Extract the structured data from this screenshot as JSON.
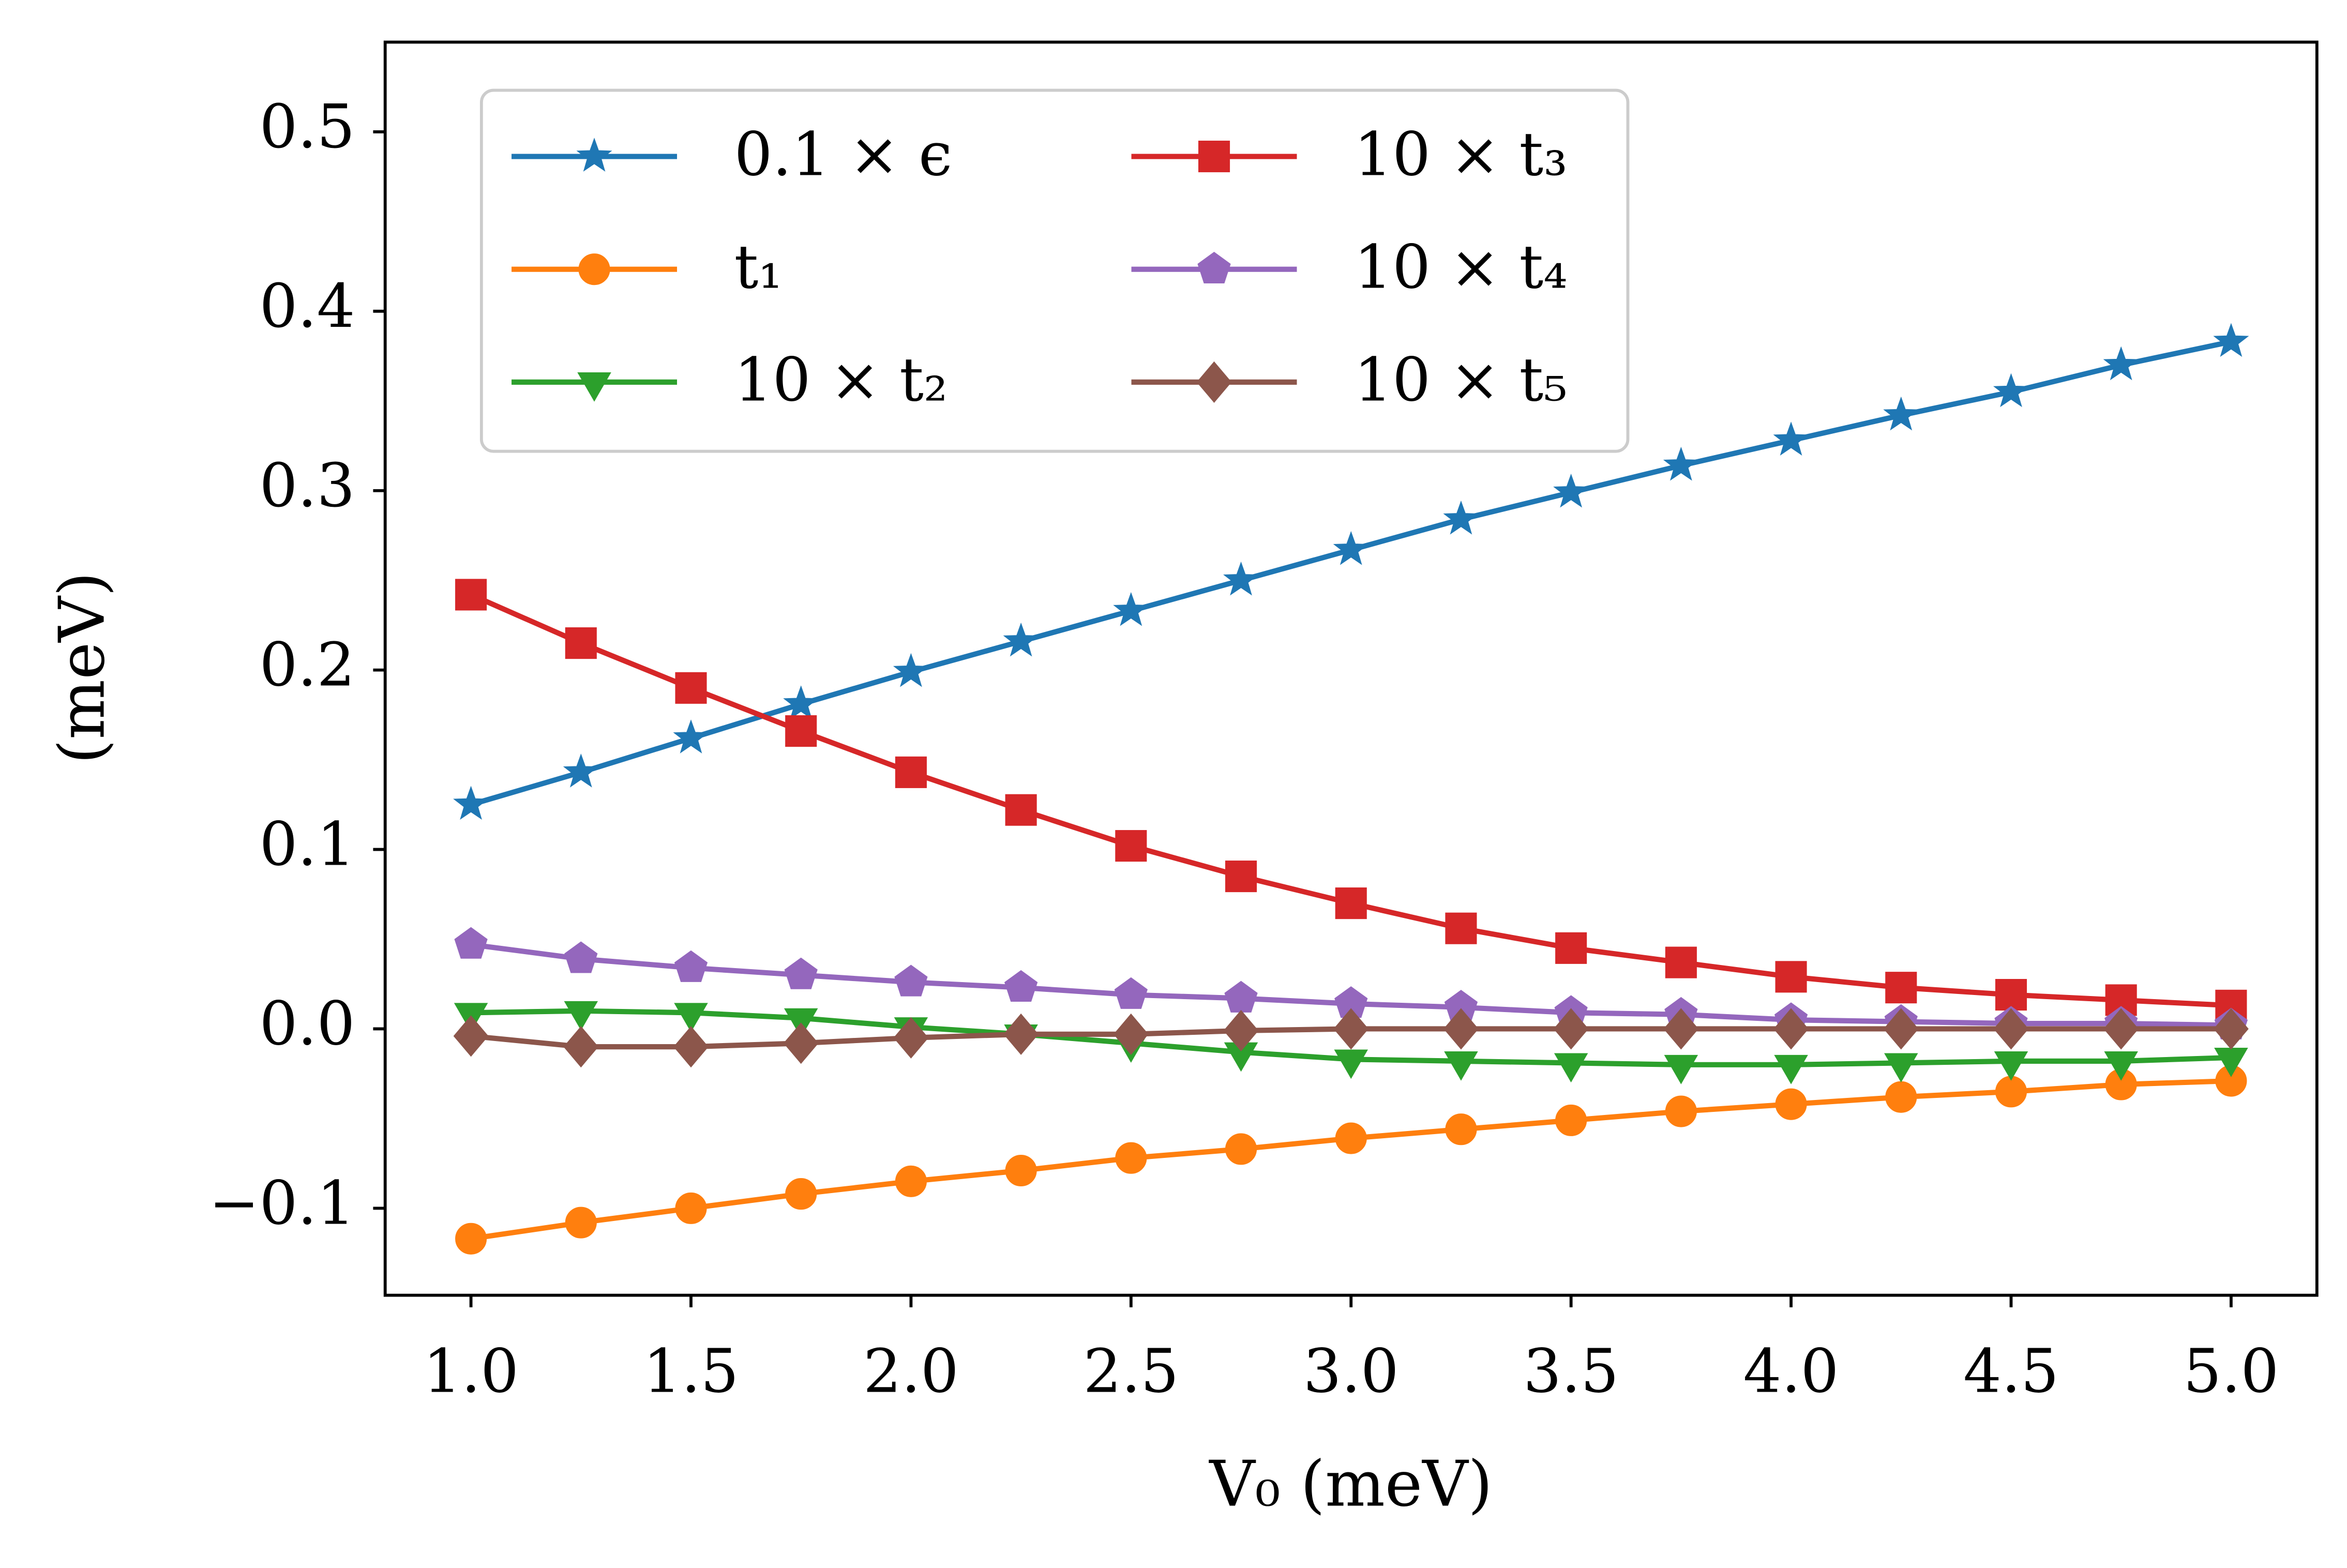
{
  "chart_data": {
    "type": "line",
    "x_label": "V₀ (meV)",
    "y_label": "(meV)",
    "x": [
      1.0,
      1.25,
      1.5,
      1.75,
      2.0,
      2.25,
      2.5,
      2.75,
      3.0,
      3.25,
      3.5,
      3.75,
      4.0,
      4.25,
      4.5,
      4.75,
      5.0
    ],
    "series": [
      {
        "name": "0.1 × ϵ",
        "color": "#1f77b4",
        "marker": "star",
        "values": [
          0.125,
          0.143,
          0.162,
          0.181,
          0.199,
          0.216,
          0.233,
          0.25,
          0.267,
          0.284,
          0.299,
          0.314,
          0.328,
          0.342,
          0.355,
          0.37,
          0.383
        ]
      },
      {
        "name": "t₁",
        "color": "#ff7f0e",
        "marker": "circle",
        "values": [
          -0.117,
          -0.108,
          -0.1,
          -0.092,
          -0.085,
          -0.079,
          -0.072,
          -0.067,
          -0.061,
          -0.056,
          -0.051,
          -0.046,
          -0.042,
          -0.038,
          -0.035,
          -0.031,
          -0.029
        ]
      },
      {
        "name": "10 × t₂",
        "color": "#2ca02c",
        "marker": "triangle-down",
        "values": [
          0.009,
          0.01,
          0.009,
          0.006,
          0.001,
          -0.003,
          -0.008,
          -0.013,
          -0.017,
          -0.018,
          -0.019,
          -0.02,
          -0.02,
          -0.019,
          -0.018,
          -0.018,
          -0.016
        ]
      },
      {
        "name": "10 × t₃",
        "color": "#d62728",
        "marker": "square",
        "values": [
          0.242,
          0.215,
          0.19,
          0.166,
          0.143,
          0.122,
          0.102,
          0.085,
          0.07,
          0.056,
          0.045,
          0.037,
          0.029,
          0.023,
          0.019,
          0.016,
          0.013
        ]
      },
      {
        "name": "10 × t₄",
        "color": "#9467bd",
        "marker": "pentagon",
        "values": [
          0.047,
          0.039,
          0.034,
          0.03,
          0.026,
          0.023,
          0.019,
          0.017,
          0.014,
          0.012,
          0.009,
          0.008,
          0.005,
          0.004,
          0.003,
          0.003,
          0.002
        ]
      },
      {
        "name": "10 × t₅",
        "color": "#8c564b",
        "marker": "diamond",
        "values": [
          -0.004,
          -0.01,
          -0.01,
          -0.008,
          -0.005,
          -0.003,
          -0.003,
          -0.001,
          0,
          0,
          0,
          0,
          0,
          0,
          0,
          0,
          0
        ]
      }
    ],
    "xlim": [
      0.805,
      5.195
    ],
    "xticks": [
      {
        "value": 1,
        "label": "1.0"
      },
      1.5,
      {
        "value": 2,
        "label": "2.0"
      },
      2.5,
      {
        "value": 3,
        "label": "3.0"
      },
      3.5,
      {
        "value": 4,
        "label": "4.0"
      },
      4.5,
      {
        "value": 5,
        "label": "5.0"
      }
    ],
    "ylim": [
      -0.1485,
      0.55
    ],
    "yticks": [
      {
        "value": -0.1,
        "label": "−0.1"
      },
      {
        "value": 0,
        "label": "0.0"
      },
      0.1,
      0.2,
      0.3,
      0.4,
      0.5
    ],
    "legend": "upper left",
    "legend_columns": 2,
    "grid": false
  }
}
